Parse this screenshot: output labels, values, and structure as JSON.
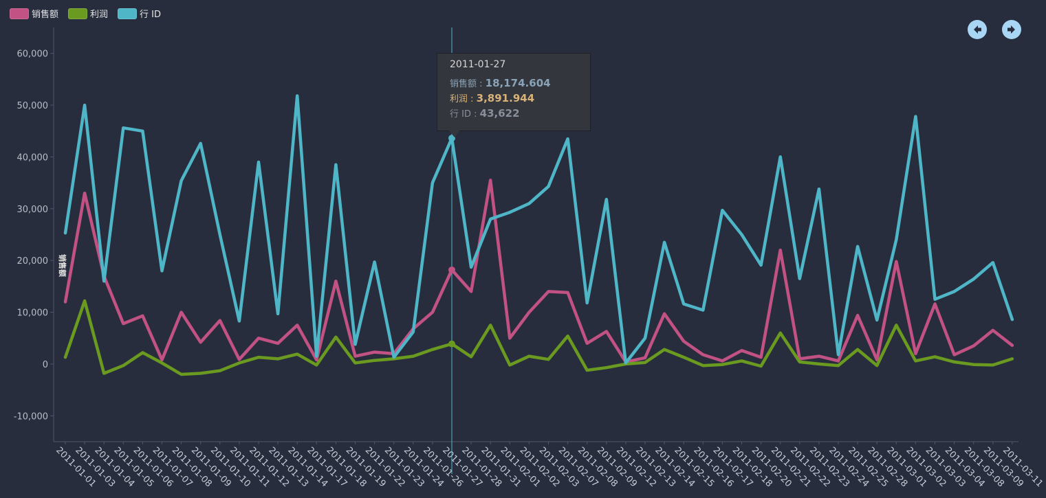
{
  "legend": [
    {
      "label": "销售额",
      "color": "#c25283"
    },
    {
      "label": "利润",
      "color": "#6a9a1f"
    },
    {
      "label": "行 ID",
      "color": "#4fb6c7"
    }
  ],
  "nav": {
    "prev_icon": "arrow-left-icon",
    "next_icon": "arrow-right-icon"
  },
  "tooltip": {
    "date": "2011-01-27",
    "rows": [
      {
        "label": "销售额",
        "sep": " : ",
        "value": "18,174.604",
        "color": "#8aa3b8"
      },
      {
        "label": "利润",
        "sep": " : ",
        "value": "3,891.944",
        "color": "#d9b27a"
      },
      {
        "label": "行 ID",
        "sep": " : ",
        "value": "43,622",
        "color": "#8a8f9c"
      }
    ]
  },
  "chart_data": {
    "type": "line",
    "ylabel": "销售额",
    "ylim": [
      -15000,
      65000
    ],
    "yticks": [
      -10000,
      0,
      10000,
      20000,
      30000,
      40000,
      50000,
      60000
    ],
    "ytick_labels": [
      "-10,000",
      "0",
      "10,000",
      "20,000",
      "30,000",
      "40,000",
      "50,000",
      "60,000"
    ],
    "highlight_index": 20,
    "categories": [
      "2011-01-01",
      "2011-01-03",
      "2011-01-04",
      "2011-01-05",
      "2011-01-06",
      "2011-01-07",
      "2011-01-08",
      "2011-01-09",
      "2011-01-10",
      "2011-01-11",
      "2011-01-12",
      "2011-01-13",
      "2011-01-14",
      "2011-01-17",
      "2011-01-18",
      "2011-01-19",
      "2011-01-22",
      "2011-01-23",
      "2011-01-24",
      "2011-01-26",
      "2011-01-27",
      "2011-01-28",
      "2011-01-31",
      "2011-02-01",
      "2011-02-02",
      "2011-02-03",
      "2011-02-07",
      "2011-02-08",
      "2011-02-09",
      "2011-02-12",
      "2011-02-13",
      "2011-02-14",
      "2011-02-15",
      "2011-02-16",
      "2011-02-17",
      "2011-02-18",
      "2011-02-20",
      "2011-02-21",
      "2011-02-22",
      "2011-02-23",
      "2011-02-24",
      "2011-02-25",
      "2011-02-28",
      "2011-03-01",
      "2011-03-02",
      "2011-03-03",
      "2011-03-04",
      "2011-03-08",
      "2011-03-09",
      "2011-03-11"
    ],
    "series": [
      {
        "name": "销售额",
        "color": "#c25283",
        "values": [
          12000,
          33000,
          17000,
          7800,
          9300,
          800,
          10000,
          4200,
          8400,
          900,
          5000,
          4000,
          7500,
          800,
          16000,
          1500,
          2300,
          2000,
          6800,
          10000,
          18174.604,
          14000,
          35500,
          5000,
          10000,
          14000,
          13800,
          4000,
          6300,
          400,
          1200,
          9700,
          4400,
          1800,
          600,
          2600,
          1300,
          22000,
          1000,
          1500,
          600,
          9400,
          800,
          19800,
          2000,
          11600,
          1800,
          3500,
          6500,
          3600
        ]
      },
      {
        "name": "利润",
        "color": "#6a9a1f",
        "values": [
          1300,
          12200,
          -1800,
          -300,
          2200,
          200,
          -2000,
          -1800,
          -1300,
          200,
          1300,
          1000,
          1900,
          -200,
          5200,
          200,
          700,
          1000,
          1500,
          2800,
          3891.944,
          1400,
          7500,
          -200,
          1500,
          900,
          5400,
          -1200,
          -700,
          0,
          300,
          2800,
          1300,
          -300,
          -100,
          600,
          -400,
          6000,
          400,
          0,
          -300,
          2800,
          -300,
          7500,
          600,
          1400,
          400,
          -100,
          -200,
          1000
        ]
      },
      {
        "name": "行 ID",
        "color": "#4fb6c7",
        "values": [
          25300,
          50000,
          16000,
          45600,
          45000,
          18000,
          35400,
          42600,
          25000,
          8300,
          39000,
          9700,
          51800,
          1500,
          38500,
          3800,
          19700,
          1300,
          6200,
          35000,
          43622,
          18700,
          28000,
          29300,
          31000,
          34300,
          43500,
          11800,
          31800,
          200,
          5000,
          23500,
          11600,
          10400,
          29700,
          25000,
          19100,
          40000,
          16500,
          33800,
          1800,
          22700,
          8500,
          24000,
          47800,
          12500,
          14000,
          16400,
          19600,
          8600
        ]
      }
    ]
  }
}
